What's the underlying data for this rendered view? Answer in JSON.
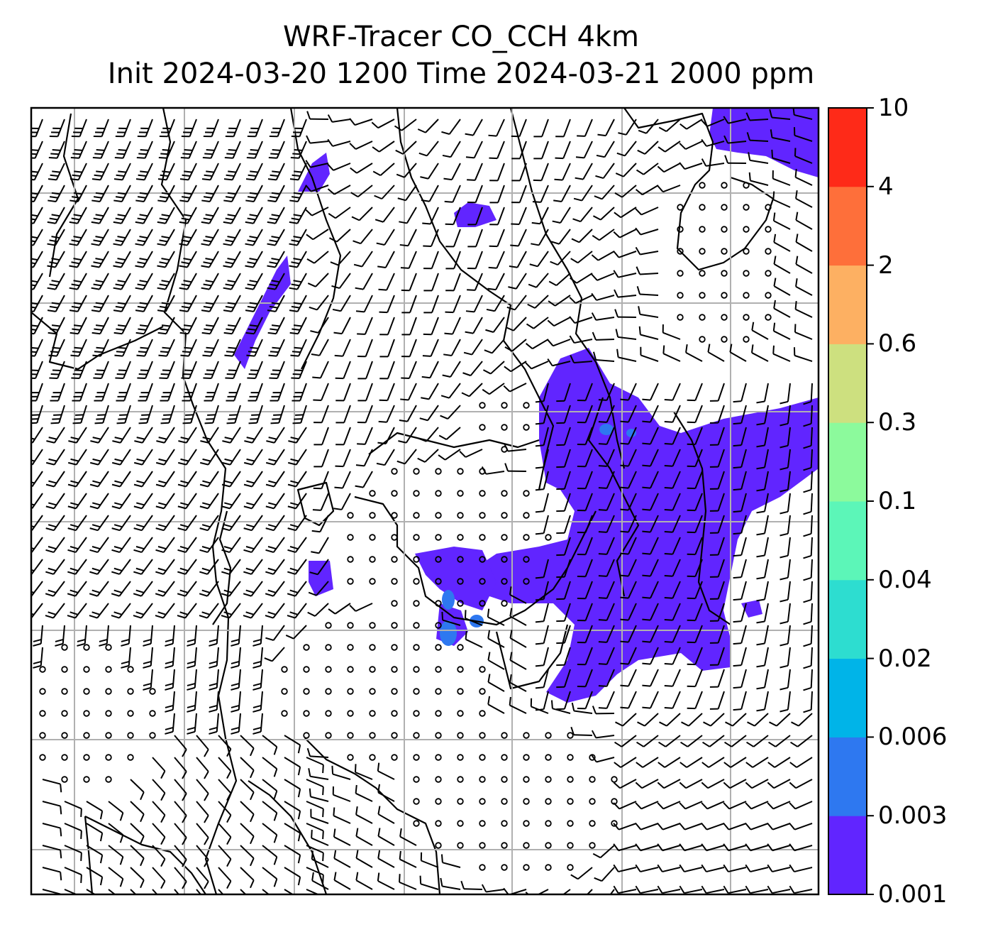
{
  "title": {
    "line1": "WRF-Tracer CO_CCH 4km",
    "line2": "Init 2024-03-20 1200 Time 2024-03-21 2000 ppm"
  },
  "colorbar": {
    "levels": [
      "0.001",
      "0.003",
      "0.006",
      "0.02",
      "0.04",
      "0.1",
      "0.3",
      "0.6",
      "2",
      "4",
      "10"
    ],
    "colors": [
      "#6125ff",
      "#2e78f0",
      "#00b4e8",
      "#2dddd0",
      "#5cf6b8",
      "#8cfa9c",
      "#cde07f",
      "#fdb062",
      "#fe6f3a",
      "#fe2a18"
    ]
  },
  "map": {
    "grid_color": "#b0b0b0",
    "coast_color": "#000000",
    "barb_color": "#000000"
  }
}
